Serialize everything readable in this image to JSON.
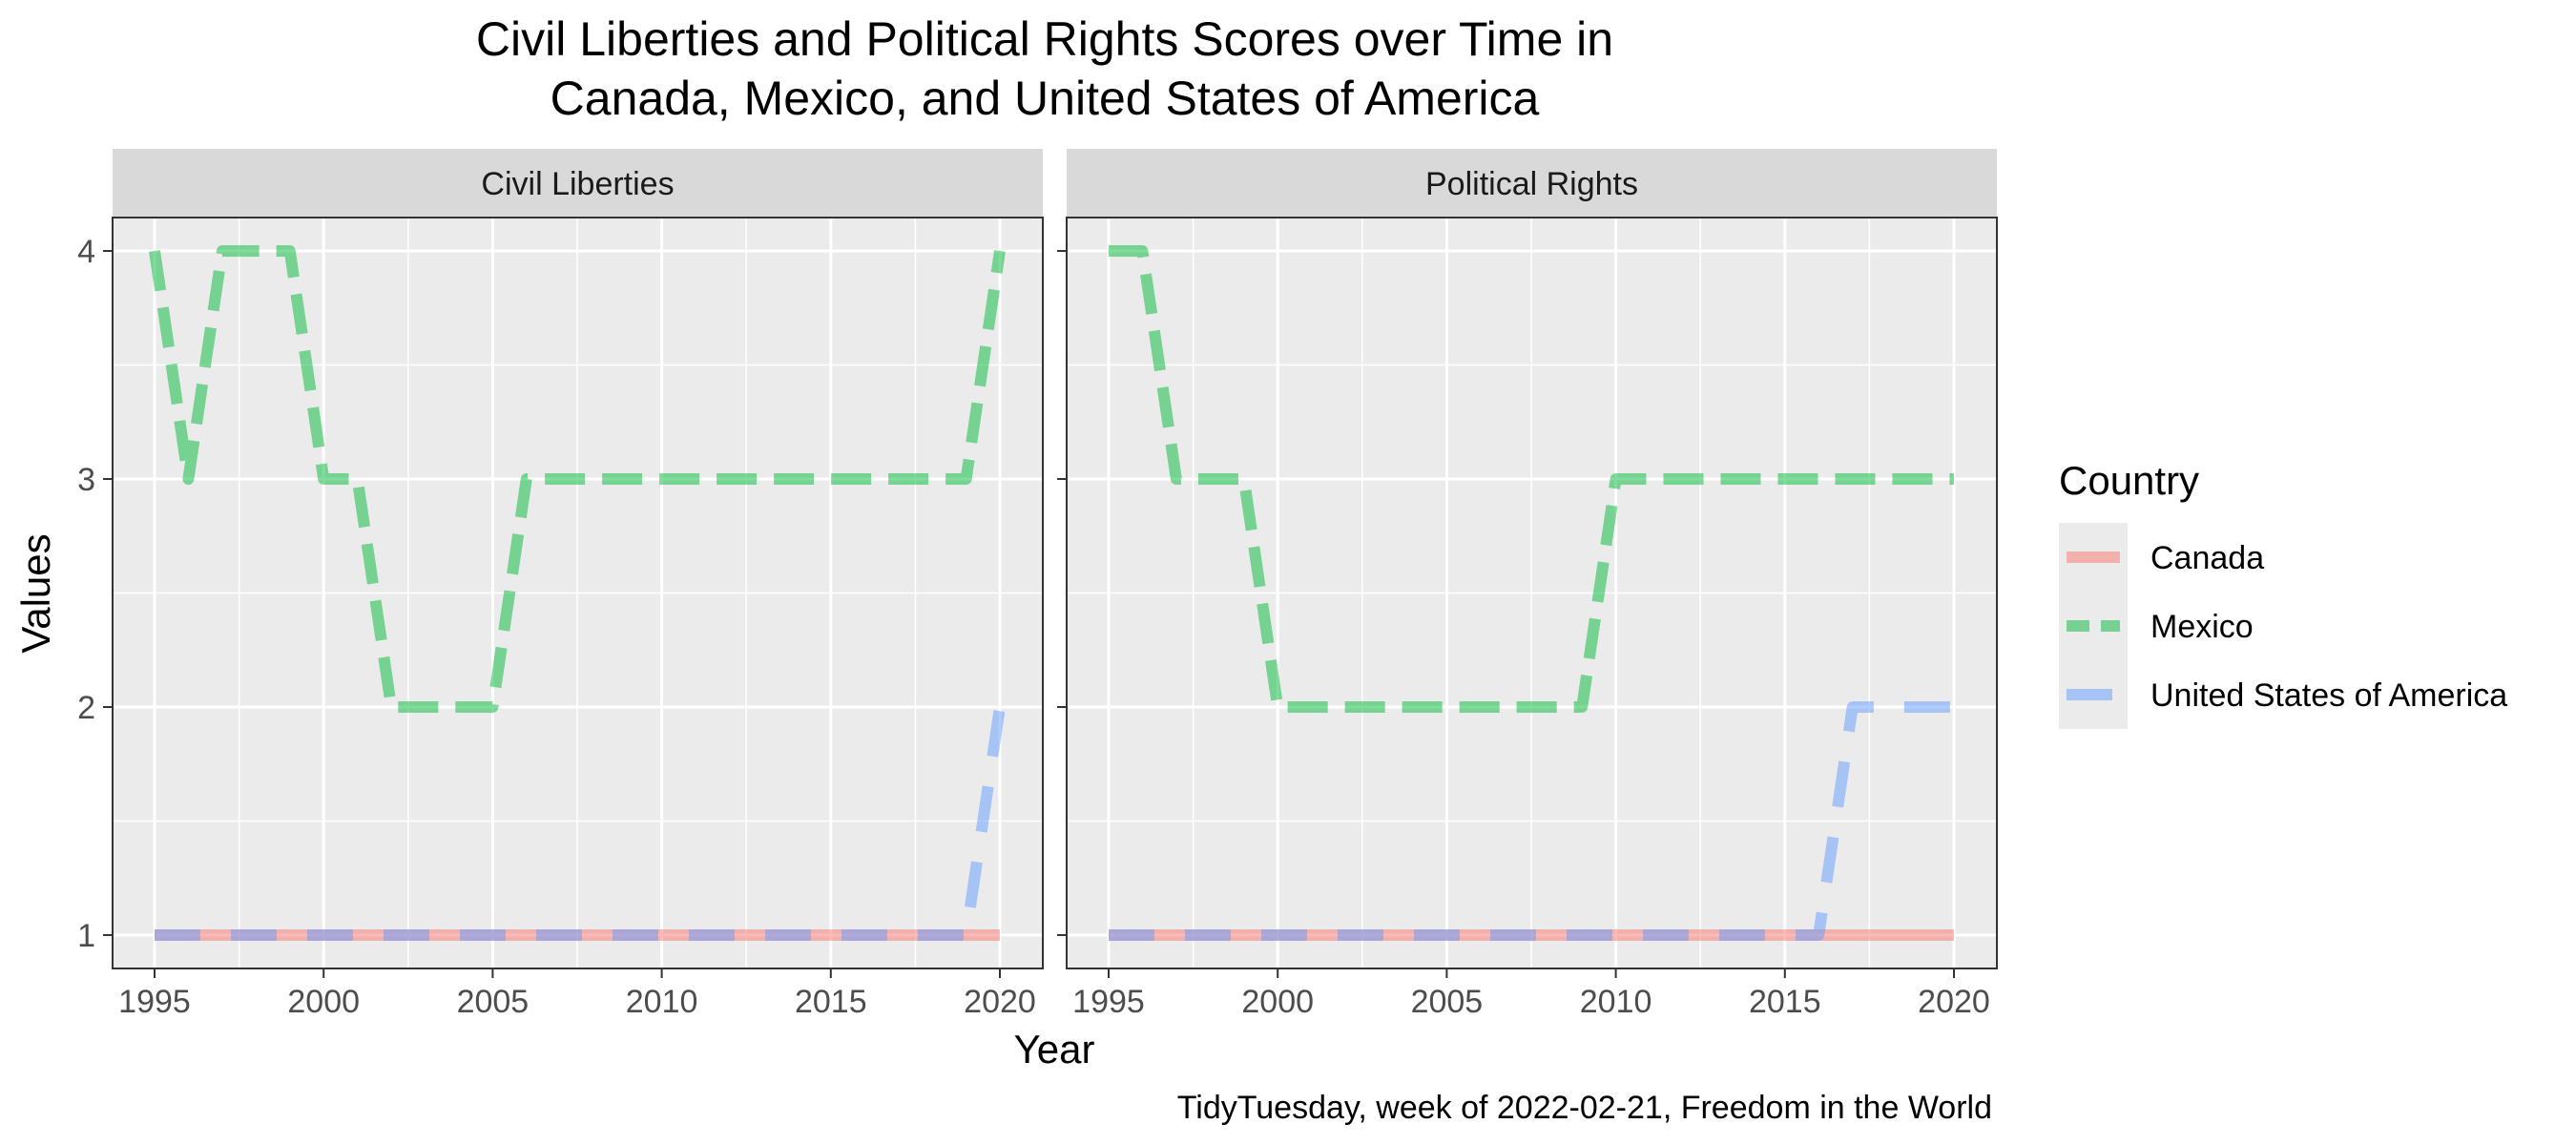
{
  "chart_data": {
    "type": "line",
    "title_line1": "Civil Liberties and Political Rights Scores over Time in",
    "title_line2": "Canada, Mexico, and United States of America",
    "xlabel": "Year",
    "ylabel": "Values",
    "caption": "TidyTuesday, week of 2022-02-21, Freedom in the World",
    "xlim": [
      1995,
      2020
    ],
    "ylim": [
      1,
      4
    ],
    "x_ticks": [
      "1995",
      "2000",
      "2005",
      "2010",
      "2015",
      "2020"
    ],
    "y_ticks": [
      "1",
      "2",
      "3",
      "4"
    ],
    "grid": true,
    "legend": {
      "title": "Country",
      "position": "right",
      "entries": [
        "Canada",
        "Mexico",
        "United States of America"
      ]
    },
    "colors": {
      "Canada": "#F8766D",
      "Mexico": "#00BA38",
      "United States of America": "#619CFF",
      "panel_bg": "#EBEBEB",
      "strip_bg": "#D9D9D9",
      "grid": "#FFFFFF"
    },
    "x": [
      1995,
      1996,
      1997,
      1998,
      1999,
      2000,
      2001,
      2002,
      2003,
      2004,
      2005,
      2006,
      2007,
      2008,
      2009,
      2010,
      2011,
      2012,
      2013,
      2014,
      2015,
      2016,
      2017,
      2018,
      2019,
      2020
    ],
    "panels": [
      {
        "title": "Civil Liberties",
        "series": [
          {
            "name": "Canada",
            "values": [
              1,
              1,
              1,
              1,
              1,
              1,
              1,
              1,
              1,
              1,
              1,
              1,
              1,
              1,
              1,
              1,
              1,
              1,
              1,
              1,
              1,
              1,
              1,
              1,
              1,
              1
            ]
          },
          {
            "name": "Mexico",
            "values": [
              4,
              3,
              4,
              4,
              4,
              3,
              3,
              2,
              2,
              2,
              2,
              3,
              3,
              3,
              3,
              3,
              3,
              3,
              3,
              3,
              3,
              3,
              3,
              3,
              3,
              4
            ]
          },
          {
            "name": "United States of America",
            "values": [
              1,
              1,
              1,
              1,
              1,
              1,
              1,
              1,
              1,
              1,
              1,
              1,
              1,
              1,
              1,
              1,
              1,
              1,
              1,
              1,
              1,
              1,
              1,
              1,
              1,
              2
            ]
          }
        ]
      },
      {
        "title": "Political Rights",
        "series": [
          {
            "name": "Canada",
            "values": [
              1,
              1,
              1,
              1,
              1,
              1,
              1,
              1,
              1,
              1,
              1,
              1,
              1,
              1,
              1,
              1,
              1,
              1,
              1,
              1,
              1,
              1,
              1,
              1,
              1,
              1
            ]
          },
          {
            "name": "Mexico",
            "values": [
              4,
              4,
              3,
              3,
              3,
              2,
              2,
              2,
              2,
              2,
              2,
              2,
              2,
              2,
              2,
              3,
              3,
              3,
              3,
              3,
              3,
              3,
              3,
              3,
              3,
              3
            ]
          },
          {
            "name": "United States of America",
            "values": [
              1,
              1,
              1,
              1,
              1,
              1,
              1,
              1,
              1,
              1,
              1,
              1,
              1,
              1,
              1,
              1,
              1,
              1,
              1,
              1,
              1,
              1,
              2,
              2,
              2,
              2
            ]
          }
        ]
      }
    ]
  }
}
